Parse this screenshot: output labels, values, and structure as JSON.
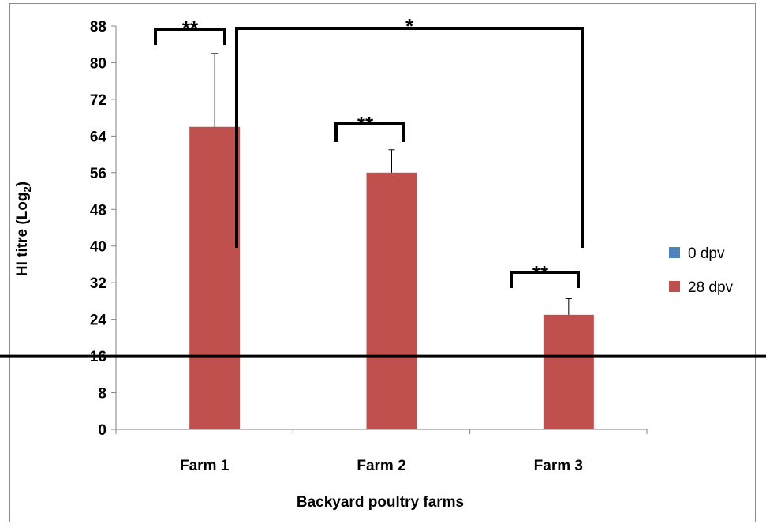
{
  "chart_data": {
    "type": "bar",
    "categories": [
      "Farm 1",
      "Farm 2",
      "Farm 3"
    ],
    "series": [
      {
        "name": "0 dpv",
        "color": "#4f81bd",
        "values": [
          0,
          0,
          0
        ]
      },
      {
        "name": "28 dpv",
        "color": "#c0504d",
        "values": [
          66,
          56,
          25
        ],
        "error": [
          16,
          5,
          3.5
        ]
      }
    ],
    "xlabel": "Backyard poultry farms",
    "ylabel": "HI titre (Log",
    "ylabel_subscript": "2",
    "ylabel_suffix": ")",
    "ylim": [
      0,
      88
    ],
    "yticks": [
      "0",
      "8",
      "16",
      "24",
      "32",
      "40",
      "48",
      "56",
      "64",
      "72",
      "80",
      "88"
    ],
    "reference_line": 16,
    "legend_position": "right",
    "grid": false,
    "significance": [
      {
        "label": "**",
        "between": "Farm 1 0 dpv vs 28 dpv"
      },
      {
        "label": "**",
        "between": "Farm 2 0 dpv vs 28 dpv"
      },
      {
        "label": "**",
        "between": "Farm 3 0 dpv vs 28 dpv"
      },
      {
        "label": "*",
        "between": "Farm 1 vs Farm 3 (28 dpv)"
      }
    ]
  }
}
